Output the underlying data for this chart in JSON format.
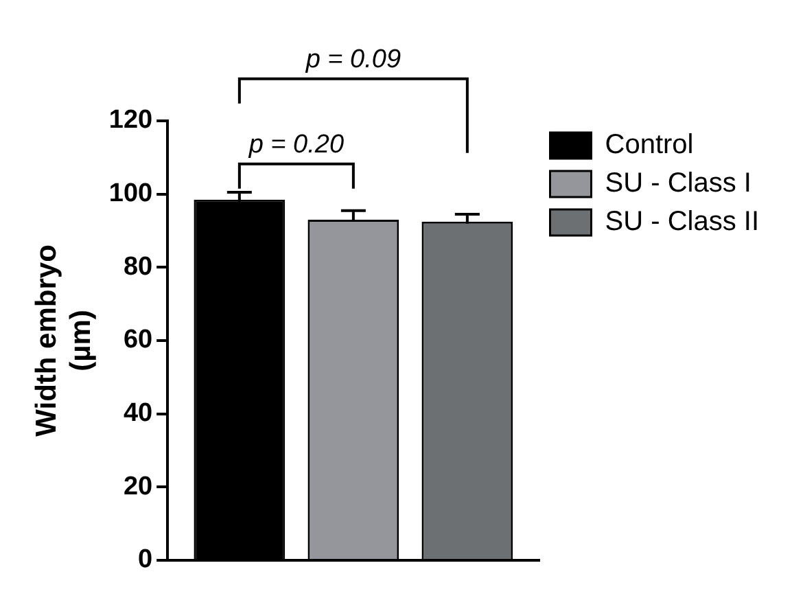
{
  "chart_data": {
    "type": "bar",
    "ylabel": "Width embryo (µm)",
    "categories": [
      null
    ],
    "series": [
      {
        "name": "Control",
        "color": "#000000",
        "values": [
          98.5
        ],
        "errors": [
          2
        ]
      },
      {
        "name": "SU - Class I",
        "color": "#94969b",
        "values": [
          93
        ],
        "errors": [
          2.5
        ]
      },
      {
        "name": "SU - Class II",
        "color": "#6d7073",
        "values": [
          92.5
        ],
        "errors": [
          2
        ]
      }
    ],
    "ylim": [
      0,
      120
    ],
    "yticks": [
      0,
      20,
      40,
      60,
      80,
      100,
      120
    ],
    "grid": false,
    "legend": "top right",
    "tick_labels": "y",
    "annotations": [
      "p = 0.20",
      "p = 0.09"
    ]
  }
}
